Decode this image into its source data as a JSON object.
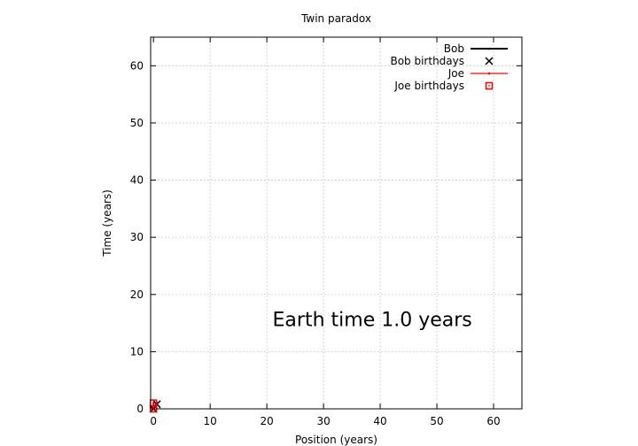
{
  "chart_data": {
    "type": "line",
    "title": "Twin paradox",
    "xlabel": "Position (years)",
    "ylabel": "Time (years)",
    "xlim": [
      -0.5,
      65
    ],
    "ylim": [
      0,
      65
    ],
    "xticks": [
      0,
      10,
      20,
      30,
      40,
      50,
      60
    ],
    "yticks": [
      0,
      10,
      20,
      30,
      40,
      50,
      60
    ],
    "grid": true,
    "legend_position": "top-right",
    "annotation": "Earth time  1.0 years",
    "annotation_pos": [
      21,
      14.5
    ],
    "series": [
      {
        "name": "Bob",
        "kind": "line",
        "color": "#000000",
        "x": [
          0,
          0.6
        ],
        "y": [
          0,
          1.0
        ]
      },
      {
        "name": "Bob birthdays",
        "kind": "points",
        "marker": "x",
        "color": "#000000",
        "x": [
          0,
          0.6
        ],
        "y": [
          0,
          0.8
        ]
      },
      {
        "name": "Joe",
        "kind": "line",
        "color": "#ff0000",
        "x": [
          0,
          0
        ],
        "y": [
          0,
          1.0
        ]
      },
      {
        "name": "Joe birthdays",
        "kind": "points",
        "marker": "square",
        "color": "#ff0000",
        "x": [
          0,
          0
        ],
        "y": [
          0,
          1.0
        ]
      }
    ]
  }
}
